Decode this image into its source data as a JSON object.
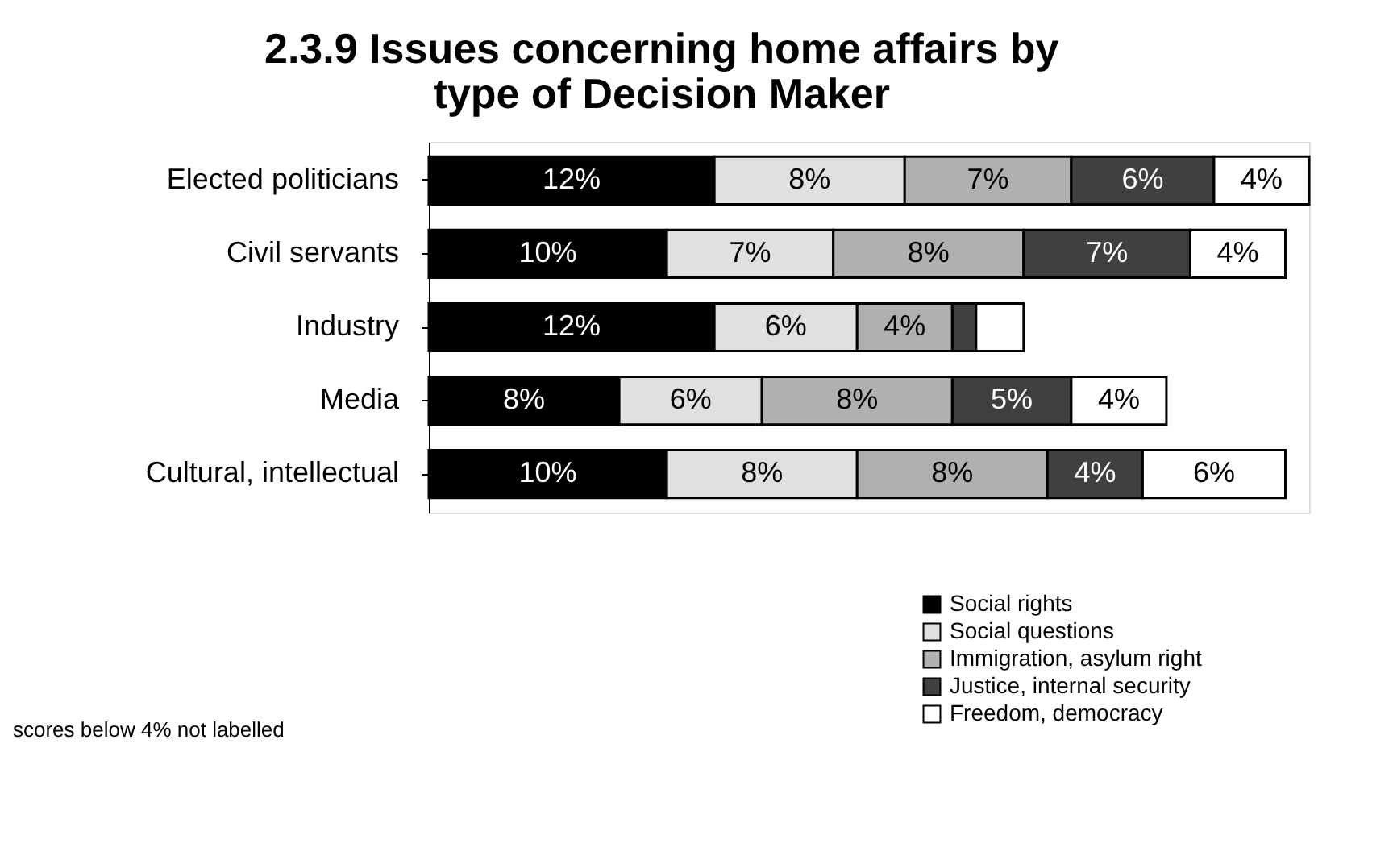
{
  "chart_data": {
    "type": "bar",
    "orientation": "horizontal",
    "stacked": true,
    "title": "2.3.9  Issues concerning home affairs by type of Decision Maker",
    "categories": [
      "Elected politicians",
      "Civil servants",
      "Industry",
      "Media",
      "Cultural, intellectual"
    ],
    "series": [
      {
        "name": "Social rights",
        "color": "#000000",
        "values": [
          12,
          10,
          12,
          8,
          10
        ],
        "value_labels": [
          "12%",
          "10%",
          "12%",
          "8%",
          "10%"
        ]
      },
      {
        "name": "Social questions",
        "color": "#e0e0e0",
        "values": [
          8,
          7,
          6,
          6,
          8
        ],
        "value_labels": [
          "8%",
          "7%",
          "6%",
          "6%",
          "8%"
        ]
      },
      {
        "name": "Immigration, asylum right",
        "color": "#b0b0b0",
        "values": [
          7,
          8,
          4,
          8,
          8
        ],
        "value_labels": [
          "7%",
          "8%",
          "4%",
          "8%",
          "8%"
        ]
      },
      {
        "name": "Justice, internal security",
        "color": "#404040",
        "values": [
          6,
          7,
          1,
          5,
          4
        ],
        "value_labels": [
          "6%",
          "7%",
          null,
          "5%",
          "4%"
        ]
      },
      {
        "name": "Freedom, democracy",
        "color": "#ffffff",
        "values": [
          4,
          4,
          2,
          4,
          6
        ],
        "value_labels": [
          "4%",
          "4%",
          null,
          "4%",
          "6%"
        ]
      }
    ],
    "annotations": [
      "scores below 4% not labelled"
    ],
    "legend": "bottom right",
    "grid": false,
    "tick_labels": "y"
  }
}
